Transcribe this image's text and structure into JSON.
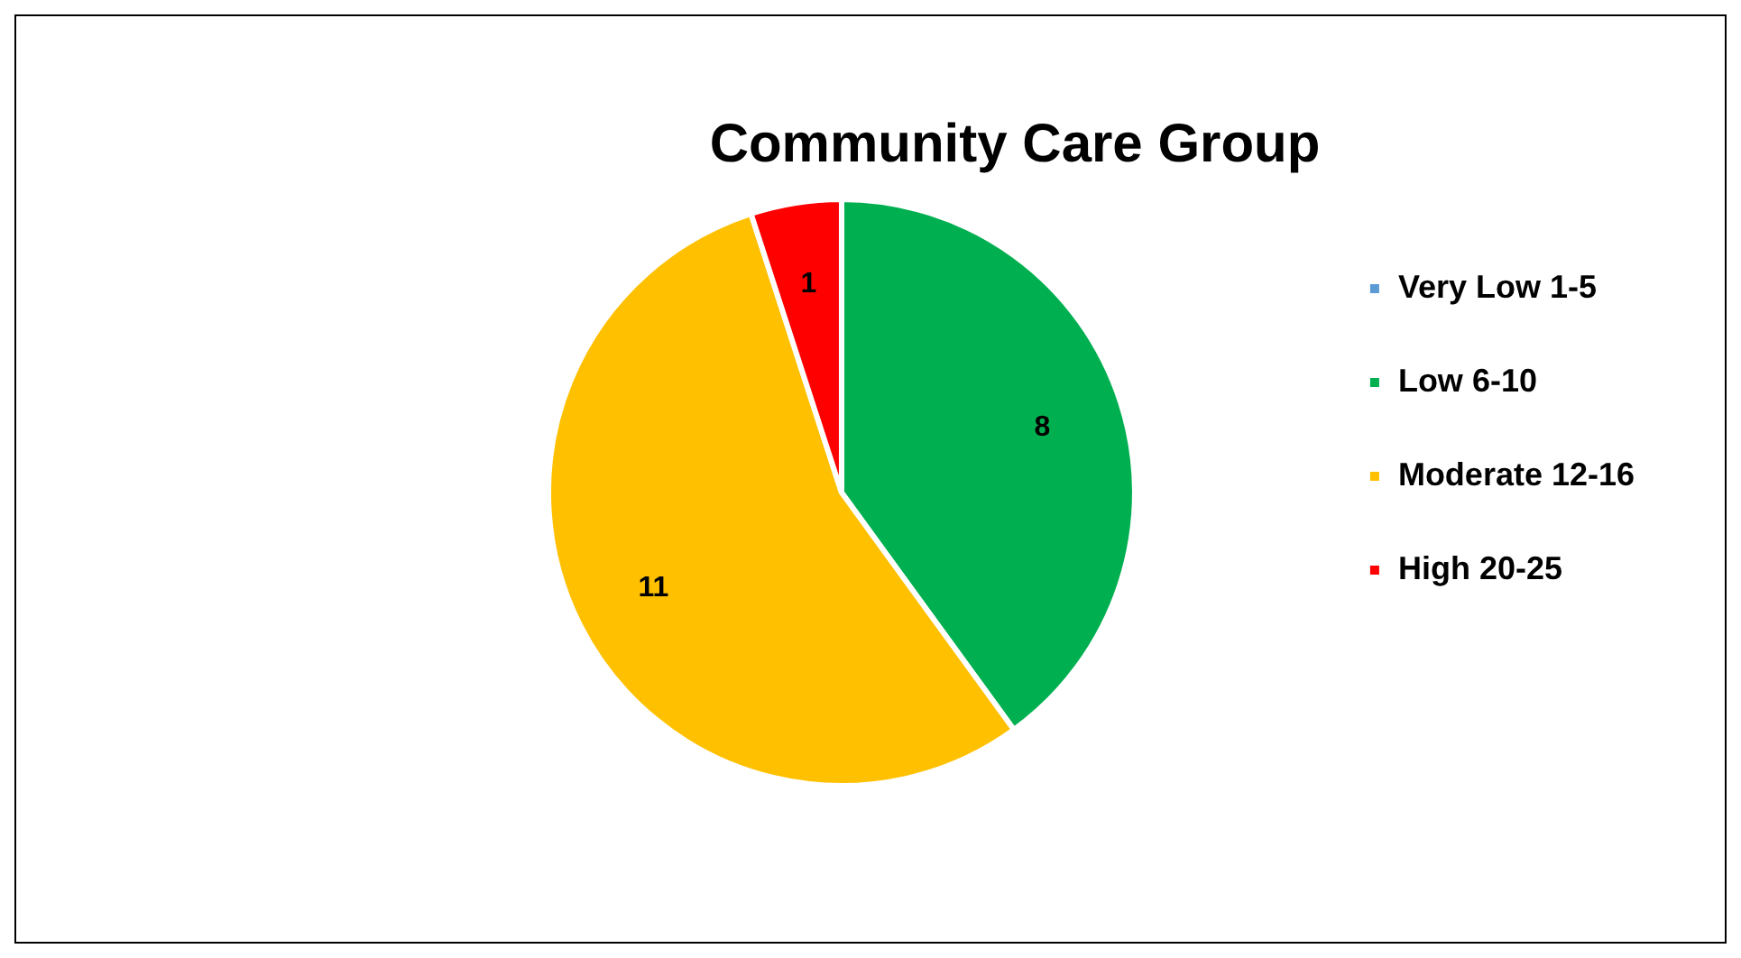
{
  "chart_data": {
    "type": "pie",
    "title": "Community Care Group",
    "categories": [
      "Very Low 1-5",
      "Low 6-10",
      "Moderate 12-16",
      "High 20-25"
    ],
    "values": [
      0,
      8,
      11,
      1
    ],
    "colors": [
      "#5b9bd5",
      "#00b050",
      "#ffc000",
      "#ff0000"
    ],
    "value_labels": [
      null,
      "8",
      "11",
      "1"
    ],
    "legend": "right"
  }
}
